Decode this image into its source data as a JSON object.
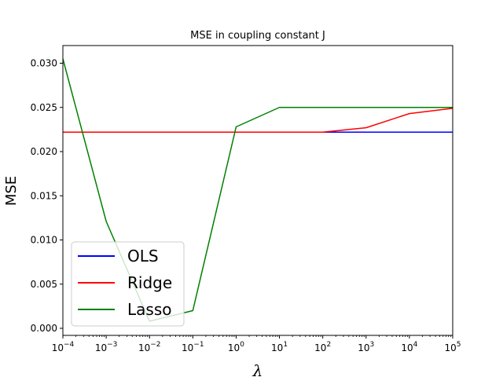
{
  "chart_data": {
    "type": "line",
    "title": "MSE in coupling constant J",
    "xlabel": "λ",
    "ylabel": "MSE",
    "xscale": "log",
    "xlim": [
      0.0001,
      100000
    ],
    "ylim": [
      -0.0008,
      0.032
    ],
    "x": [
      0.0001,
      0.001,
      0.01,
      0.1,
      1,
      10,
      100,
      1000,
      10000,
      100000
    ],
    "xtick_labels": [
      {
        "base": "10",
        "exp": "−4"
      },
      {
        "base": "10",
        "exp": "−3"
      },
      {
        "base": "10",
        "exp": "−2"
      },
      {
        "base": "10",
        "exp": "−1"
      },
      {
        "base": "10",
        "exp": "0"
      },
      {
        "base": "10",
        "exp": "1"
      },
      {
        "base": "10",
        "exp": "2"
      },
      {
        "base": "10",
        "exp": "3"
      },
      {
        "base": "10",
        "exp": "4"
      },
      {
        "base": "10",
        "exp": "5"
      }
    ],
    "yticks": [
      0.0,
      0.005,
      0.01,
      0.015,
      0.02,
      0.025,
      0.03
    ],
    "ytick_labels": [
      "0.000",
      "0.005",
      "0.010",
      "0.015",
      "0.020",
      "0.025",
      "0.030"
    ],
    "grid": false,
    "legend_position": "lower-left",
    "series": [
      {
        "name": "OLS",
        "color": "#0000ff",
        "values": [
          0.0222,
          0.0222,
          0.0222,
          0.0222,
          0.0222,
          0.0222,
          0.0222,
          0.0222,
          0.0222,
          0.0222
        ]
      },
      {
        "name": "Ridge",
        "color": "#ff0000",
        "values": [
          0.0222,
          0.0222,
          0.0222,
          0.0222,
          0.0222,
          0.0222,
          0.0222,
          0.0227,
          0.0243,
          0.0249
        ]
      },
      {
        "name": "Lasso",
        "color": "#008000",
        "values": [
          0.0305,
          0.0121,
          0.0008,
          0.002,
          0.0228,
          0.025,
          0.025,
          0.025,
          0.025,
          0.025
        ]
      }
    ]
  }
}
